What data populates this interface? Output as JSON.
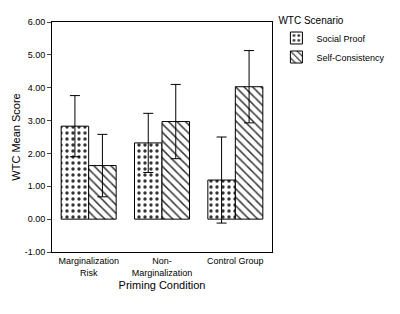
{
  "chart_data": {
    "type": "bar",
    "x_label": "Priming Condition",
    "y_label": "WTC Mean Score",
    "legend_title": "WTC Scenario",
    "legend": "top right",
    "grid": false,
    "categories": [
      "Marginalization Risk",
      "Non-Marginalization",
      "Control Group"
    ],
    "series": [
      {
        "name": "Social Proof",
        "color": "#ffffff",
        "values": [
          2.83,
          2.32,
          1.19
        ],
        "errors": [
          0.93,
          0.9,
          1.31
        ]
      },
      {
        "name": "Self-Consistency",
        "color": "#ffffff",
        "values": [
          1.63,
          2.97,
          4.03
        ],
        "errors": [
          0.95,
          1.13,
          1.1
        ]
      }
    ],
    "ylim": [
      -1,
      6
    ],
    "yticks": [
      {
        "value": -1,
        "label": "-1.00"
      },
      {
        "value": 0,
        "label": "0.00"
      },
      {
        "value": 1,
        "label": "1.00"
      },
      {
        "value": 2,
        "label": "2.00"
      },
      {
        "value": 3,
        "label": "3.00"
      },
      {
        "value": 4,
        "label": "4.00"
      },
      {
        "value": 5,
        "label": "5.00"
      },
      {
        "value": 6,
        "label": "6.00"
      }
    ]
  }
}
